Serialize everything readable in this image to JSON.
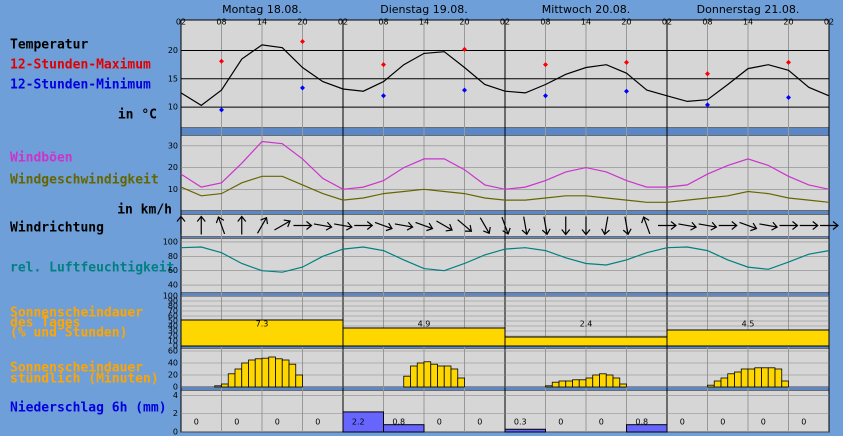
{
  "chart_data": [
    {
      "type": "line",
      "title": "Temperatur",
      "y_label": "in °C",
      "days": [
        "Montag 18.08.",
        "Dienstag 19.08.",
        "Mittwoch 20.08.",
        "Donnerstag 21.08."
      ],
      "xlim": [
        0,
        96
      ],
      "xticks": [
        {
          "value": 0,
          "label": "02"
        },
        {
          "value": 6,
          "label": "08"
        },
        {
          "value": 12,
          "label": "14"
        },
        {
          "value": 18,
          "label": "20"
        },
        {
          "value": 24,
          "label": "02"
        },
        {
          "value": 30,
          "label": "08"
        },
        {
          "value": 36,
          "label": "14"
        },
        {
          "value": 42,
          "label": "20"
        },
        {
          "value": 48,
          "label": "02"
        },
        {
          "value": 54,
          "label": "08"
        },
        {
          "value": 60,
          "label": "14"
        },
        {
          "value": 66,
          "label": "20"
        },
        {
          "value": 72,
          "label": "02"
        },
        {
          "value": 78,
          "label": "08"
        },
        {
          "value": 84,
          "label": "14"
        },
        {
          "value": 90,
          "label": "20"
        },
        {
          "value": 96,
          "label": "02"
        }
      ],
      "x": [
        0,
        3,
        6,
        9,
        12,
        15,
        18,
        21,
        24,
        27,
        30,
        33,
        36,
        39,
        42,
        45,
        48,
        51,
        54,
        57,
        60,
        63,
        66,
        69,
        72,
        75,
        78,
        81,
        84,
        87,
        90,
        93,
        96
      ],
      "values": [
        12.5,
        10.3,
        13,
        18.5,
        21,
        20.5,
        17,
        14.5,
        13.2,
        12.8,
        14.5,
        17.5,
        19.5,
        19.8,
        17,
        14,
        12.8,
        12.5,
        14,
        15.8,
        17,
        17.5,
        16,
        13,
        12,
        11,
        11.3,
        14,
        16.8,
        17.5,
        16.5,
        13.5,
        12
      ],
      "color": "#000000",
      "markers": [
        {
          "name": "12-Stunden-Maximum",
          "color": "#ff0000",
          "x": [
            6,
            18,
            30,
            42,
            54,
            66,
            78,
            90
          ],
          "values": [
            18.1,
            21.6,
            17.5,
            20.2,
            17.5,
            17.9,
            15.9,
            17.9
          ]
        },
        {
          "name": "12-Stunden-Minimum",
          "color": "#0000ff",
          "x": [
            6,
            18,
            30,
            42,
            54,
            66,
            78,
            90
          ],
          "values": [
            9.5,
            13.4,
            12.0,
            13.0,
            12.0,
            12.8,
            10.4,
            11.7
          ]
        }
      ],
      "ylim": [
        6.3,
        25.4
      ],
      "yticks": [
        10,
        15,
        20
      ],
      "grid": true
    },
    {
      "type": "line",
      "y_label": "in km/h",
      "xlim": [
        0,
        96
      ],
      "x": [
        0,
        3,
        6,
        9,
        12,
        15,
        18,
        21,
        24,
        27,
        30,
        33,
        36,
        39,
        42,
        45,
        48,
        51,
        54,
        57,
        60,
        63,
        66,
        69,
        72,
        75,
        78,
        81,
        84,
        87,
        90,
        93,
        96
      ],
      "series": [
        {
          "name": "Windböen",
          "color": "#cc33cc",
          "values": [
            17,
            11,
            13,
            22,
            32,
            31,
            24,
            15,
            10,
            11,
            14,
            20,
            24,
            24,
            19,
            12,
            10,
            11,
            14,
            18,
            20,
            18,
            14,
            11,
            11,
            12,
            17,
            21,
            24,
            21,
            16,
            12,
            10
          ]
        },
        {
          "name": "Windgeschwindigkeit",
          "color": "#666600",
          "values": [
            11,
            7,
            8,
            13,
            16,
            16,
            12,
            8,
            5,
            6,
            8,
            9,
            10,
            9,
            8,
            6,
            5,
            5,
            6,
            7,
            7,
            6,
            5,
            4,
            4,
            5,
            6,
            7,
            9,
            8,
            6,
            5,
            4
          ]
        }
      ],
      "ylim": [
        0,
        35
      ],
      "yticks": [
        10,
        20,
        30
      ],
      "grid": true
    },
    {
      "type": "arrows",
      "title": "Windrichtung",
      "xlim": [
        0,
        96
      ],
      "x": [
        0,
        3,
        6,
        9,
        12,
        15,
        18,
        21,
        24,
        27,
        30,
        33,
        36,
        39,
        42,
        45,
        48,
        51,
        54,
        57,
        60,
        63,
        66,
        69,
        72,
        75,
        78,
        81,
        84,
        87,
        90,
        93,
        96
      ],
      "values": [
        0,
        0,
        -20,
        0,
        30,
        60,
        90,
        100,
        100,
        90,
        110,
        100,
        110,
        120,
        130,
        150,
        160,
        170,
        170,
        180,
        180,
        190,
        170,
        -20,
        90,
        100,
        100,
        90,
        110,
        100,
        90,
        90,
        90
      ]
    },
    {
      "type": "line",
      "xlim": [
        0,
        96
      ],
      "x": [
        0,
        3,
        6,
        9,
        12,
        15,
        18,
        21,
        24,
        27,
        30,
        33,
        36,
        39,
        42,
        45,
        48,
        51,
        54,
        57,
        60,
        63,
        66,
        69,
        72,
        75,
        78,
        81,
        84,
        87,
        90,
        93,
        96
      ],
      "series": [
        {
          "name": "rel. Luftfeuchtigkeit",
          "color": "#008080",
          "values": [
            92,
            93,
            85,
            70,
            60,
            58,
            65,
            80,
            90,
            93,
            88,
            75,
            63,
            60,
            70,
            82,
            90,
            92,
            88,
            78,
            70,
            68,
            75,
            85,
            92,
            93,
            88,
            75,
            65,
            62,
            72,
            83,
            88
          ]
        }
      ],
      "ylim": [
        29,
        105.5
      ],
      "yticks": [
        40,
        60,
        80,
        100
      ],
      "grid": true
    },
    {
      "type": "histogram",
      "title": [
        "Sonnenscheindauer",
        "des Tages",
        "(% und Stunden)"
      ],
      "xlim": [
        0,
        96
      ],
      "bins": [
        0,
        24,
        48,
        72,
        96
      ],
      "values": [
        52,
        36,
        18,
        32
      ],
      "hours": [
        7.3,
        4.9,
        2.4,
        4.5
      ],
      "color": "#ffd700",
      "ylim": [
        0,
        100
      ],
      "yticks": [
        0,
        10,
        20,
        30,
        40,
        50,
        60,
        70,
        80,
        90,
        100
      ],
      "grid": true
    },
    {
      "type": "hourbars",
      "title": [
        "Sonnenscheindauer",
        "stündlich (Minuten)"
      ],
      "xlim": [
        0,
        96
      ],
      "x": [
        5,
        6,
        7,
        8,
        9,
        10,
        11,
        12,
        13,
        14,
        15,
        16,
        17,
        33,
        34,
        35,
        36,
        37,
        38,
        39,
        40,
        41,
        54,
        55,
        56,
        57,
        58,
        59,
        60,
        61,
        62,
        63,
        64,
        65,
        78,
        79,
        80,
        81,
        82,
        83,
        84,
        85,
        86,
        87,
        88,
        89
      ],
      "values": [
        2,
        5,
        22,
        30,
        40,
        45,
        47,
        48,
        50,
        47,
        45,
        38,
        20,
        18,
        35,
        40,
        42,
        38,
        35,
        35,
        30,
        15,
        2,
        8,
        10,
        10,
        12,
        12,
        15,
        20,
        22,
        20,
        15,
        5,
        3,
        10,
        15,
        22,
        25,
        30,
        30,
        32,
        32,
        32,
        30,
        10
      ],
      "color": "#ffd700",
      "ylim": [
        0,
        65
      ],
      "yticks": [
        0,
        20,
        40,
        60
      ],
      "grid": true
    },
    {
      "type": "histogram",
      "title": "Niederschlag 6h (mm)",
      "xlim": [
        0,
        96
      ],
      "bins": [
        0,
        6,
        12,
        18,
        24,
        30,
        36,
        42,
        48,
        54,
        60,
        66,
        72,
        78,
        84,
        90,
        96
      ],
      "values": [
        0,
        0,
        0,
        0,
        2.2,
        0.8,
        0,
        0,
        0.3,
        0,
        0,
        0.8,
        0,
        0,
        0,
        0
      ],
      "color": "#6666ff",
      "show_values": true,
      "ylim": [
        0,
        4.6
      ],
      "yticks": [
        0,
        2,
        4
      ],
      "grid": true
    }
  ]
}
